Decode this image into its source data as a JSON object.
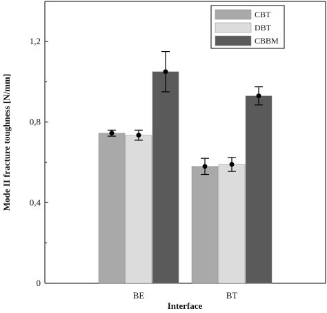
{
  "chart_data": {
    "type": "bar",
    "xlabel": "Interface",
    "ylabel": "Mode II fracture toughness [N/mm]",
    "categories": [
      "BE",
      "BT"
    ],
    "ylim": [
      0,
      1.3
    ],
    "yticks": [
      0,
      0.4,
      0.8,
      1.2
    ],
    "ytick_labels": [
      "0",
      "0,4",
      "0,8",
      "1,2"
    ],
    "series": [
      {
        "name": "CBT",
        "color": "#a9a9a9",
        "values": [
          0.745,
          0.58
        ],
        "errors": [
          0.015,
          0.04
        ]
      },
      {
        "name": "DBT",
        "color": "#dcdcdc",
        "values": [
          0.735,
          0.59
        ],
        "errors": [
          0.025,
          0.035
        ]
      },
      {
        "name": "CBBM",
        "color": "#5a5a5a",
        "values": [
          1.05,
          0.93
        ],
        "errors": [
          0.1,
          0.045
        ]
      }
    ],
    "legend_position": "top-right",
    "error_bars": true,
    "grid": false
  }
}
